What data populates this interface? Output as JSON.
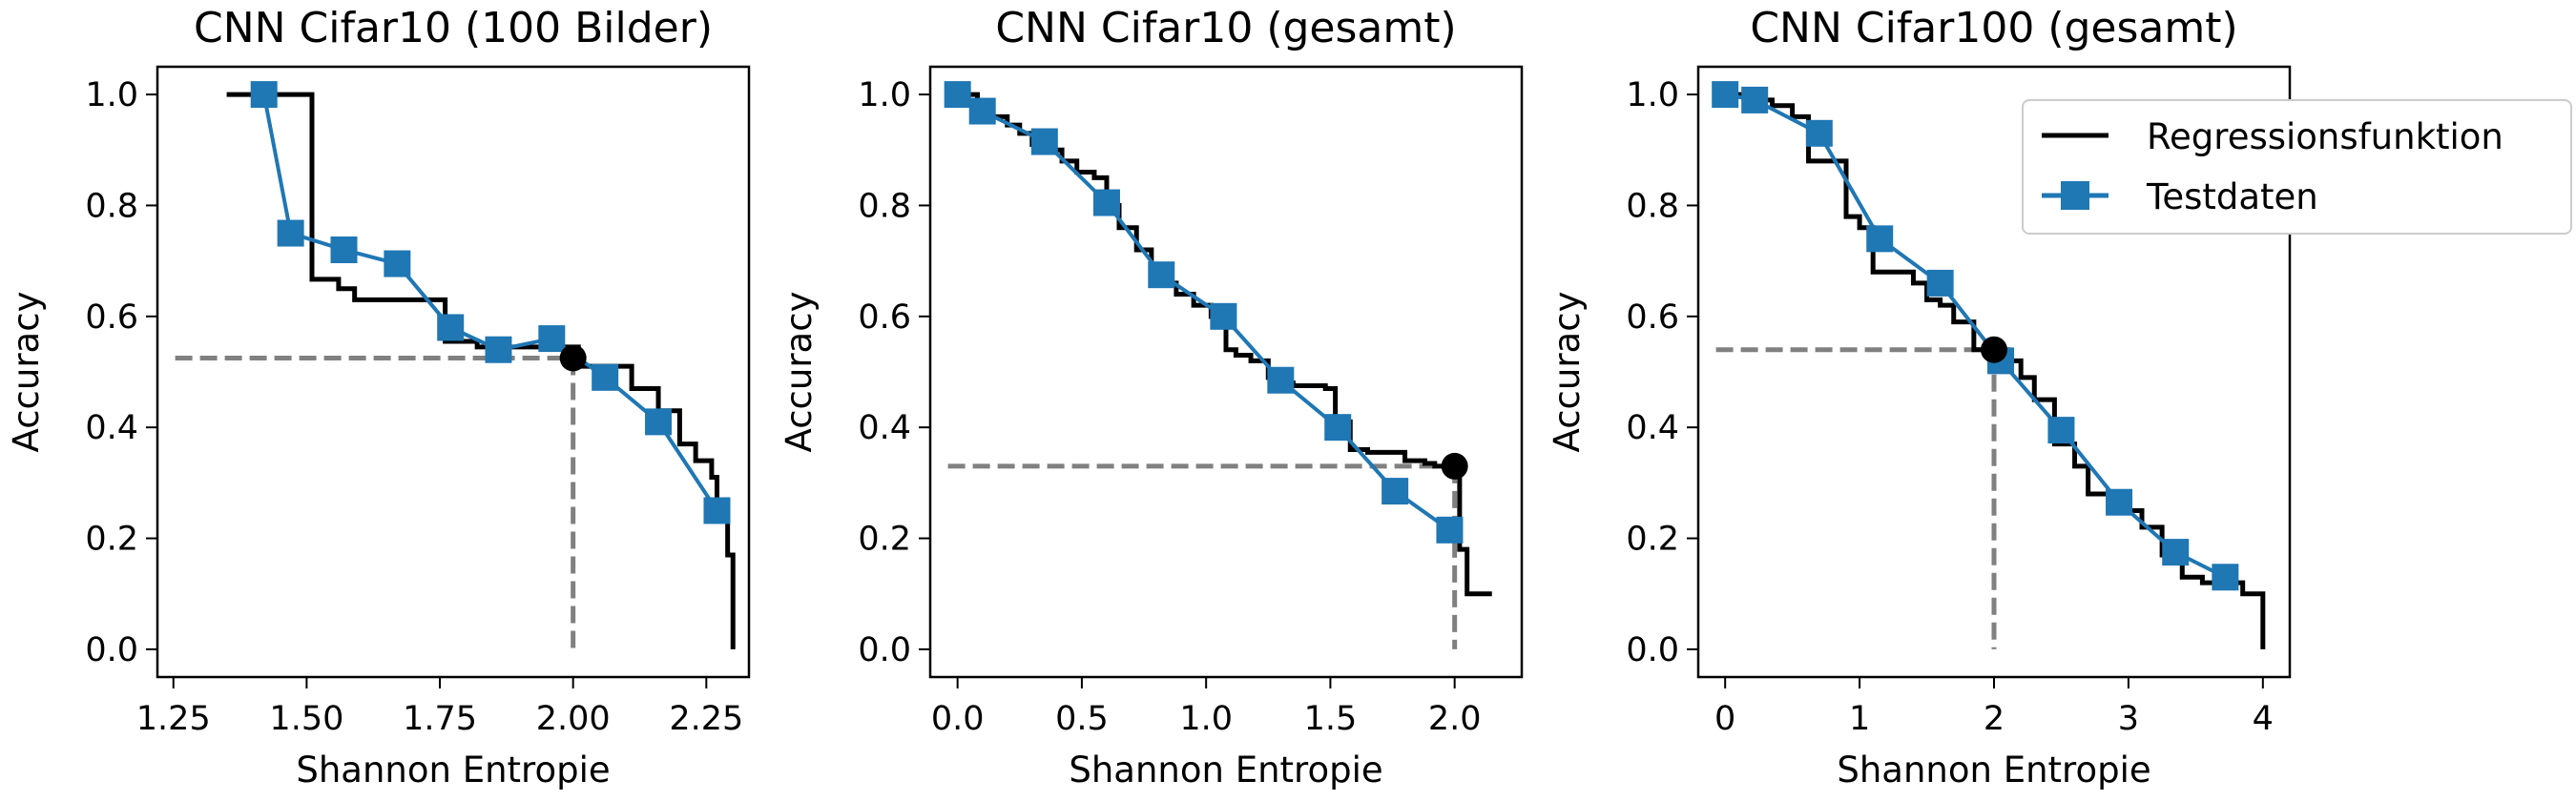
{
  "colors": {
    "regression": "#000000",
    "test": "#1f77b4",
    "guide": "#808080",
    "point": "#000000"
  },
  "legend": {
    "placement": "top-right",
    "items": [
      "Regressionsfunktion",
      "Testdaten"
    ]
  },
  "chart_data": [
    {
      "type": "line",
      "title": "CNN Cifar10 (100 Bilder)",
      "xlabel": "Shannon Entropie",
      "ylabel": "Accuracy",
      "xlim": [
        1.22,
        2.33
      ],
      "ylim": [
        -0.05,
        1.05
      ],
      "xticks": [
        1.25,
        1.5,
        1.75,
        2.0,
        2.25
      ],
      "xtick_labels": [
        "1.25",
        "1.50",
        "1.75",
        "2.00",
        "2.25"
      ],
      "yticks": [
        0.0,
        0.2,
        0.4,
        0.6,
        0.8,
        1.0
      ],
      "ytick_labels": [
        "0.0",
        "0.2",
        "0.4",
        "0.6",
        "0.8",
        "1.0"
      ],
      "series": [
        {
          "name": "Regressionsfunktion",
          "style": "step",
          "x": [
            1.35,
            1.42,
            1.43,
            1.5,
            1.51,
            1.55,
            1.56,
            1.58,
            1.59,
            1.75,
            1.76,
            1.8,
            1.82,
            2.0,
            2.01,
            2.1,
            2.11,
            2.15,
            2.16,
            2.19,
            2.2,
            2.22,
            2.23,
            2.25,
            2.26,
            2.27,
            2.29,
            2.3
          ],
          "y": [
            1.0,
            1.0,
            1.0,
            1.0,
            0.667,
            0.667,
            0.65,
            0.65,
            0.63,
            0.63,
            0.555,
            0.555,
            0.545,
            0.545,
            0.51,
            0.51,
            0.47,
            0.47,
            0.43,
            0.43,
            0.37,
            0.37,
            0.34,
            0.34,
            0.31,
            0.26,
            0.17,
            0.0
          ]
        },
        {
          "name": "Testdaten",
          "x": [
            1.42,
            1.47,
            1.57,
            1.67,
            1.77,
            1.86,
            1.96,
            2.06,
            2.16,
            2.27
          ],
          "y": [
            1.0,
            0.75,
            0.72,
            0.695,
            0.58,
            0.54,
            0.56,
            0.49,
            0.41,
            0.25
          ]
        }
      ],
      "marked_point": {
        "x": 2.0,
        "y": 0.525
      }
    },
    {
      "type": "line",
      "title": "CNN Cifar10 (gesamt)",
      "xlabel": "Shannon Entropie",
      "ylabel": "Accuracy",
      "xlim": [
        -0.11,
        2.27
      ],
      "ylim": [
        -0.05,
        1.05
      ],
      "xticks": [
        0.0,
        0.5,
        1.0,
        1.5,
        2.0
      ],
      "xtick_labels": [
        "0.0",
        "0.5",
        "1.0",
        "1.5",
        "2.0"
      ],
      "yticks": [
        0.0,
        0.2,
        0.4,
        0.6,
        0.8,
        1.0
      ],
      "ytick_labels": [
        "0.0",
        "0.2",
        "0.4",
        "0.6",
        "0.8",
        "1.0"
      ],
      "series": [
        {
          "name": "Regressionsfunktion",
          "style": "step",
          "x": [
            0.0,
            0.08,
            0.12,
            0.2,
            0.25,
            0.3,
            0.35,
            0.42,
            0.48,
            0.55,
            0.6,
            0.65,
            0.72,
            0.78,
            0.82,
            0.88,
            0.95,
            1.02,
            1.08,
            1.12,
            1.18,
            1.25,
            1.3,
            1.35,
            1.42,
            1.48,
            1.52,
            1.58,
            1.65,
            1.72,
            1.8,
            1.88,
            1.92,
            1.95,
            2.0,
            2.02,
            2.05,
            2.15
          ],
          "y": [
            1.0,
            0.98,
            0.96,
            0.945,
            0.93,
            0.91,
            0.9,
            0.88,
            0.86,
            0.85,
            0.8,
            0.76,
            0.72,
            0.68,
            0.66,
            0.64,
            0.62,
            0.6,
            0.54,
            0.53,
            0.52,
            0.49,
            0.48,
            0.475,
            0.475,
            0.47,
            0.41,
            0.36,
            0.355,
            0.355,
            0.34,
            0.335,
            0.33,
            0.33,
            0.33,
            0.18,
            0.1,
            0.1
          ]
        },
        {
          "name": "Testdaten",
          "x": [
            0.0,
            0.1,
            0.35,
            0.6,
            0.82,
            1.07,
            1.3,
            1.53,
            1.76,
            1.98
          ],
          "y": [
            1.0,
            0.97,
            0.915,
            0.805,
            0.675,
            0.6,
            0.485,
            0.4,
            0.285,
            0.215
          ]
        }
      ],
      "marked_point": {
        "x": 2.0,
        "y": 0.33
      }
    },
    {
      "type": "line",
      "title": "CNN Cifar100 (gesamt)",
      "xlabel": "Shannon Entropie",
      "ylabel": "Accuracy",
      "xlim": [
        -0.2,
        4.2
      ],
      "ylim": [
        -0.05,
        1.05
      ],
      "xticks": [
        0,
        1,
        2,
        3,
        4
      ],
      "xtick_labels": [
        "0",
        "1",
        "2",
        "3",
        "4"
      ],
      "yticks": [
        0.0,
        0.2,
        0.4,
        0.6,
        0.8,
        1.0
      ],
      "ytick_labels": [
        "0.0",
        "0.2",
        "0.4",
        "0.6",
        "0.8",
        "1.0"
      ],
      "series": [
        {
          "name": "Regressionsfunktion",
          "style": "step",
          "x": [
            0.0,
            0.2,
            0.35,
            0.5,
            0.62,
            0.75,
            0.9,
            1.0,
            1.1,
            1.2,
            1.4,
            1.5,
            1.6,
            1.7,
            1.85,
            2.0,
            2.1,
            2.2,
            2.3,
            2.45,
            2.6,
            2.7,
            2.85,
            3.0,
            3.1,
            3.25,
            3.4,
            3.55,
            3.7,
            3.85,
            3.95,
            4.0
          ],
          "y": [
            1.0,
            0.99,
            0.98,
            0.96,
            0.88,
            0.88,
            0.78,
            0.76,
            0.68,
            0.68,
            0.66,
            0.63,
            0.62,
            0.59,
            0.54,
            0.54,
            0.52,
            0.49,
            0.45,
            0.37,
            0.33,
            0.28,
            0.26,
            0.25,
            0.22,
            0.17,
            0.13,
            0.12,
            0.12,
            0.1,
            0.1,
            0.0
          ]
        },
        {
          "name": "Testdaten",
          "x": [
            0.0,
            0.22,
            0.7,
            1.15,
            1.6,
            2.05,
            2.5,
            2.93,
            3.35,
            3.72
          ],
          "y": [
            1.0,
            0.99,
            0.93,
            0.74,
            0.66,
            0.52,
            0.395,
            0.265,
            0.175,
            0.13
          ]
        }
      ],
      "marked_point": {
        "x": 2.0,
        "y": 0.54
      }
    }
  ]
}
